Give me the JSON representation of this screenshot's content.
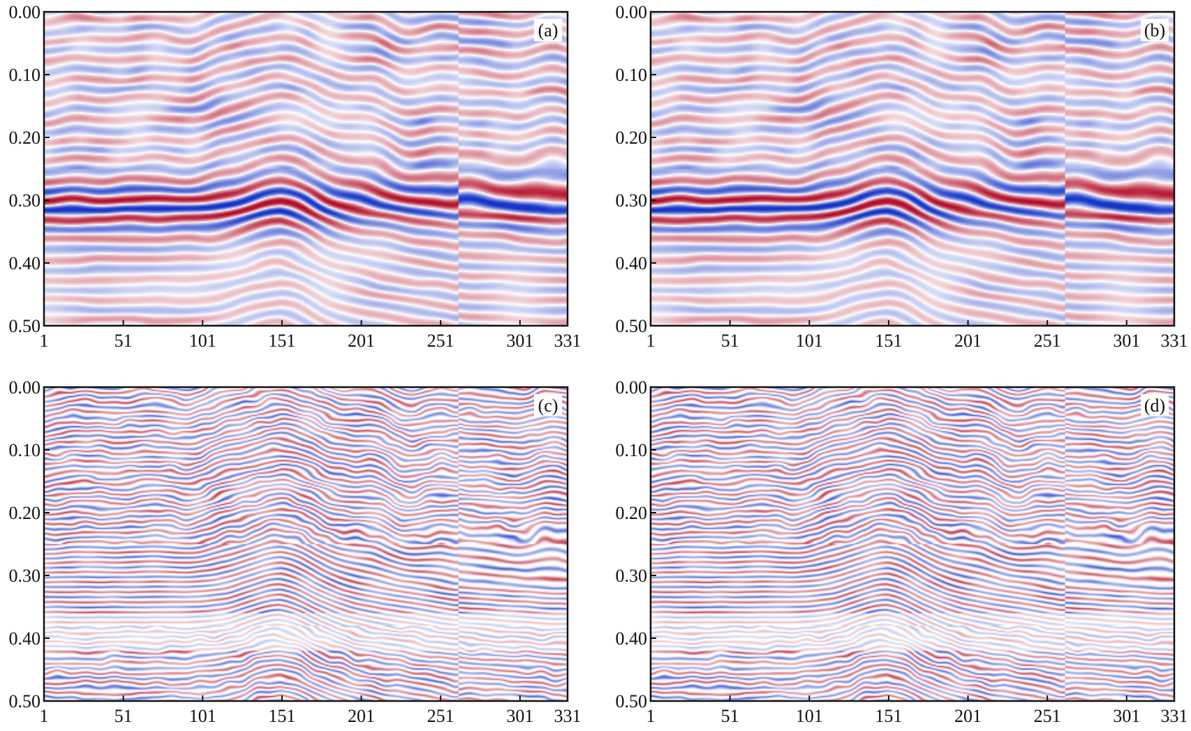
{
  "figure": {
    "colors": {
      "positive": "#b40f2a",
      "negative": "#1634c8",
      "background": "#ffffff",
      "frame": "#111111"
    }
  },
  "chart_data": [
    {
      "type": "heatmap",
      "panel_label": "(a)",
      "style": "smooth-wide",
      "title": "",
      "xlabel": "",
      "ylabel": "",
      "xlim": [
        1,
        331
      ],
      "ylim": [
        0.5,
        0.0
      ],
      "x_ticks": [
        "1",
        "51",
        "101",
        "151",
        "201",
        "251",
        "301",
        "331"
      ],
      "y_ticks": [
        "0.00",
        "0.10",
        "0.20",
        "0.30",
        "0.40",
        "0.50"
      ],
      "colormap": "red-white-blue diverging",
      "grid": false,
      "legend": "none"
    },
    {
      "type": "heatmap",
      "panel_label": "(b)",
      "style": "smooth-wide",
      "title": "",
      "xlabel": "",
      "ylabel": "",
      "xlim": [
        1,
        331
      ],
      "ylim": [
        0.5,
        0.0
      ],
      "x_ticks": [
        "1",
        "51",
        "101",
        "151",
        "201",
        "251",
        "301",
        "331"
      ],
      "y_ticks": [
        "0.00",
        "0.10",
        "0.20",
        "0.30",
        "0.40",
        "0.50"
      ],
      "colormap": "red-white-blue diverging",
      "grid": false,
      "legend": "none"
    },
    {
      "type": "heatmap",
      "panel_label": "(c)",
      "style": "thin-high-resolution",
      "title": "",
      "xlabel": "",
      "ylabel": "",
      "xlim": [
        1,
        331
      ],
      "ylim": [
        0.5,
        0.0
      ],
      "x_ticks": [
        "1",
        "51",
        "101",
        "151",
        "201",
        "251",
        "301",
        "331"
      ],
      "y_ticks": [
        "0.00",
        "0.10",
        "0.20",
        "0.30",
        "0.40",
        "0.50"
      ],
      "colormap": "red-white-blue diverging",
      "grid": false,
      "legend": "none"
    },
    {
      "type": "heatmap",
      "panel_label": "(d)",
      "style": "thin-high-resolution",
      "title": "",
      "xlabel": "",
      "ylabel": "",
      "xlim": [
        1,
        331
      ],
      "ylim": [
        0.5,
        0.0
      ],
      "x_ticks": [
        "1",
        "51",
        "101",
        "151",
        "201",
        "251",
        "301",
        "331"
      ],
      "y_ticks": [
        "0.00",
        "0.10",
        "0.20",
        "0.30",
        "0.40",
        "0.50"
      ],
      "colormap": "red-white-blue diverging",
      "grid": false,
      "legend": "none"
    }
  ]
}
